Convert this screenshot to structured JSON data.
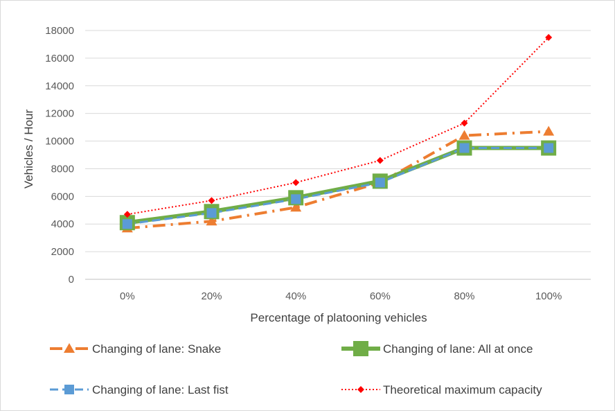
{
  "chart_data": {
    "type": "line",
    "categories": [
      "0%",
      "20%",
      "40%",
      "60%",
      "80%",
      "100%"
    ],
    "xlabel": "Percentage of platooning vehicles",
    "ylabel": "Vehicles / Hour",
    "ylim": [
      0,
      18000
    ],
    "yticks": [
      "0",
      "2000",
      "4000",
      "6000",
      "8000",
      "10000",
      "12000",
      "14000",
      "16000",
      "18000"
    ],
    "grid": "horizontal",
    "legend_position": "bottom",
    "series": [
      {
        "name": "Changing of lane: Snake",
        "values": [
          3700,
          4200,
          5200,
          7000,
          10400,
          10700
        ],
        "color": "#ED7D31",
        "style": "dash-dot",
        "marker": "triangle"
      },
      {
        "name": "Changing of lane: All at once",
        "values": [
          4100,
          4900,
          5900,
          7100,
          9500,
          9500
        ],
        "color": "#70AD47",
        "style": "solid",
        "marker": "square"
      },
      {
        "name": "Changing of lane: Last fist",
        "values": [
          4000,
          4800,
          5800,
          7000,
          9500,
          9500
        ],
        "color": "#5B9BD5",
        "style": "dash",
        "marker": "square"
      },
      {
        "name": "Theoretical maximum capacity",
        "values": [
          4700,
          5700,
          7000,
          8600,
          11300,
          17500
        ],
        "color": "#FF0000",
        "style": "dotted",
        "marker": "diamond"
      }
    ]
  }
}
